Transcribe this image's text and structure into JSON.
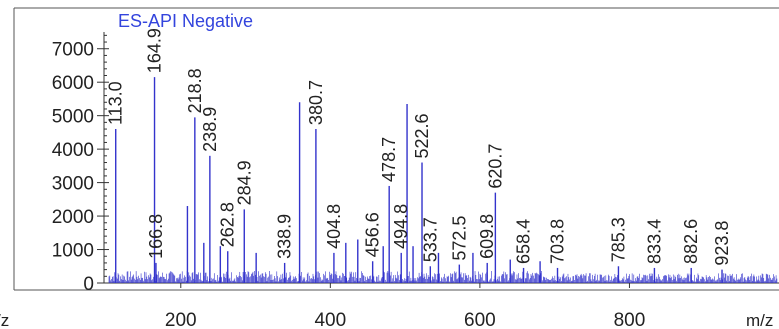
{
  "chart_data": {
    "type": "bar",
    "title": "ES-API Negative",
    "xlabel": "m/z",
    "left_edge_label": "/z",
    "ylabel": "",
    "xlim": [
      100,
      1000
    ],
    "ylim": [
      0,
      7500
    ],
    "x_ticks": [
      200,
      400,
      600,
      800
    ],
    "y_ticks": [
      0,
      1000,
      2000,
      3000,
      4000,
      5000,
      6000,
      7000
    ],
    "grid": false,
    "bar_color": "#3333cc",
    "title_color": "#3344dd",
    "peaks": [
      {
        "mz": 113.0,
        "intensity": 4600,
        "label": "113.0"
      },
      {
        "mz": 164.9,
        "intensity": 6150,
        "label": "164.9"
      },
      {
        "mz": 166.8,
        "intensity": 600,
        "label": "166.8"
      },
      {
        "mz": 218.8,
        "intensity": 4950,
        "label": "218.8"
      },
      {
        "mz": 238.9,
        "intensity": 3800,
        "label": "238.9"
      },
      {
        "mz": 262.8,
        "intensity": 950,
        "label": "262.8"
      },
      {
        "mz": 284.9,
        "intensity": 2200,
        "label": "284.9"
      },
      {
        "mz": 338.9,
        "intensity": 600,
        "label": "338.9"
      },
      {
        "mz": 380.7,
        "intensity": 4600,
        "label": "380.7"
      },
      {
        "mz": 404.8,
        "intensity": 900,
        "label": "404.8"
      },
      {
        "mz": 456.6,
        "intensity": 650,
        "label": "456.6"
      },
      {
        "mz": 478.7,
        "intensity": 2900,
        "label": "478.7"
      },
      {
        "mz": 494.8,
        "intensity": 900,
        "label": "494.8"
      },
      {
        "mz": 522.6,
        "intensity": 3600,
        "label": "522.6"
      },
      {
        "mz": 533.7,
        "intensity": 500,
        "label": "533.7"
      },
      {
        "mz": 572.5,
        "intensity": 550,
        "label": "572.5"
      },
      {
        "mz": 609.8,
        "intensity": 600,
        "label": "609.8"
      },
      {
        "mz": 620.7,
        "intensity": 2700,
        "label": "620.7"
      },
      {
        "mz": 658.4,
        "intensity": 450,
        "label": "658.4"
      },
      {
        "mz": 703.8,
        "intensity": 450,
        "label": "703.8"
      },
      {
        "mz": 785.3,
        "intensity": 500,
        "label": "785.3"
      },
      {
        "mz": 833.4,
        "intensity": 450,
        "label": "833.4"
      },
      {
        "mz": 882.6,
        "intensity": 450,
        "label": "882.6"
      },
      {
        "mz": 923.8,
        "intensity": 400,
        "label": "923.8"
      }
    ],
    "unlabeled_peaks": [
      {
        "mz": 358.9,
        "intensity": 5400
      },
      {
        "mz": 502.6,
        "intensity": 5350
      },
      {
        "mz": 208.9,
        "intensity": 2300
      },
      {
        "mz": 230.8,
        "intensity": 1200
      },
      {
        "mz": 252.9,
        "intensity": 1100
      },
      {
        "mz": 300.8,
        "intensity": 900
      },
      {
        "mz": 420.7,
        "intensity": 1200
      },
      {
        "mz": 436.7,
        "intensity": 1300
      },
      {
        "mz": 470.7,
        "intensity": 1100
      },
      {
        "mz": 510.6,
        "intensity": 1100
      },
      {
        "mz": 544.6,
        "intensity": 900
      },
      {
        "mz": 590.7,
        "intensity": 900
      },
      {
        "mz": 640.6,
        "intensity": 700
      },
      {
        "mz": 680.5,
        "intensity": 650
      }
    ]
  }
}
